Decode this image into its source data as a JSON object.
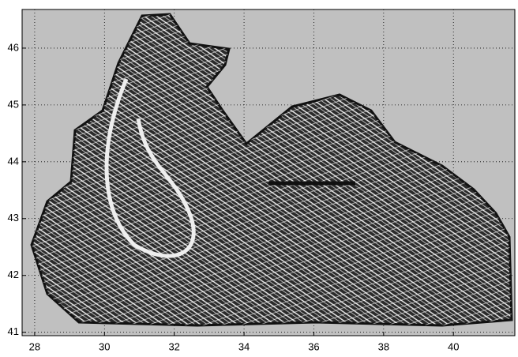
{
  "chart_data": {
    "type": "quiver",
    "xlim": [
      27.64,
      41.76
    ],
    "ylim": [
      40.94,
      46.68
    ],
    "xticks": [
      28,
      30,
      32,
      34,
      36,
      38,
      40
    ],
    "yticks": [
      41,
      42,
      43,
      44,
      45,
      46
    ],
    "grid": true,
    "background": "#c0c0c0"
  }
}
